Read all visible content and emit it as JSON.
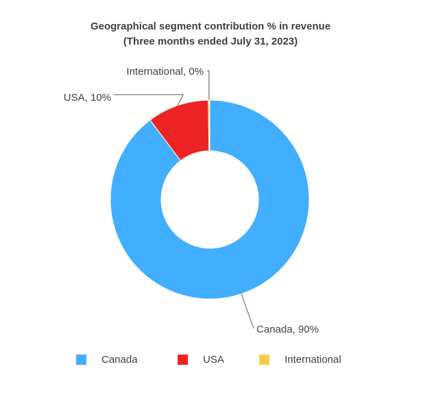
{
  "chart_data": {
    "type": "pie",
    "variant": "donut",
    "title": "Geographical segment contribution % in revenue",
    "subtitle": "(Three months ended July 31, 2023)",
    "categories": [
      "Canada",
      "USA",
      "International"
    ],
    "values": [
      90,
      10,
      0
    ],
    "data_labels": [
      "Canada, 90%",
      "USA, 10%",
      "International, 0%"
    ],
    "colors": [
      "#42AEFF",
      "#EE2323",
      "#FFC94A"
    ],
    "legend": {
      "position": "bottom",
      "entries": [
        "Canada",
        "USA",
        "International"
      ]
    }
  }
}
